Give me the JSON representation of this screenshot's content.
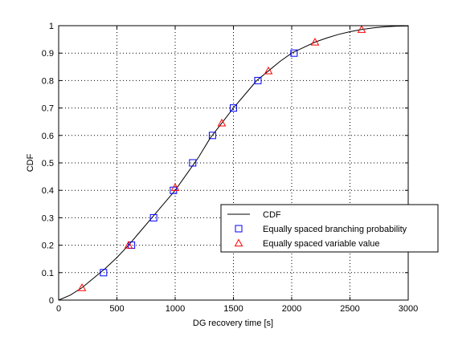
{
  "chart_data": {
    "type": "line",
    "title": "",
    "xlabel": "DG recovery time [s]",
    "ylabel": "CDF",
    "xlim": [
      0,
      3000
    ],
    "ylim": [
      0,
      1
    ],
    "xticks": [
      0,
      500,
      1000,
      1500,
      2000,
      2500,
      3000
    ],
    "yticks": [
      0,
      0.1,
      0.2,
      0.3,
      0.4,
      0.5,
      0.6,
      0.7,
      0.8,
      0.9,
      1
    ],
    "grid": true,
    "legend_position": "lower-right",
    "series": [
      {
        "name": "CDF",
        "style": "line",
        "color": "#000000",
        "x": [
          0,
          100,
          200,
          300,
          400,
          500,
          600,
          700,
          800,
          900,
          1000,
          1100,
          1200,
          1300,
          1400,
          1500,
          1600,
          1700,
          1800,
          1900,
          2000,
          2100,
          2200,
          2300,
          2400,
          2500,
          2600,
          2700,
          2800,
          2900,
          3000
        ],
        "y": [
          0,
          0.018,
          0.045,
          0.08,
          0.115,
          0.155,
          0.2,
          0.25,
          0.3,
          0.35,
          0.4,
          0.46,
          0.52,
          0.59,
          0.645,
          0.7,
          0.75,
          0.8,
          0.835,
          0.87,
          0.9,
          0.92,
          0.94,
          0.955,
          0.968,
          0.978,
          0.986,
          0.992,
          0.996,
          0.998,
          0.999
        ]
      },
      {
        "name": "Equally spaced branching probability",
        "style": "square",
        "color": "#0000ff",
        "x": [
          385,
          625,
          815,
          985,
          1150,
          1320,
          1500,
          1710,
          2020
        ],
        "y": [
          0.1,
          0.2,
          0.3,
          0.4,
          0.5,
          0.6,
          0.7,
          0.8,
          0.9
        ]
      },
      {
        "name": "Equally spaced variable value",
        "style": "triangle",
        "color": "#ff0000",
        "x": [
          200,
          600,
          1000,
          1400,
          1800,
          2200,
          2600
        ],
        "y": [
          0.045,
          0.2,
          0.41,
          0.645,
          0.835,
          0.94,
          0.986
        ]
      }
    ]
  }
}
